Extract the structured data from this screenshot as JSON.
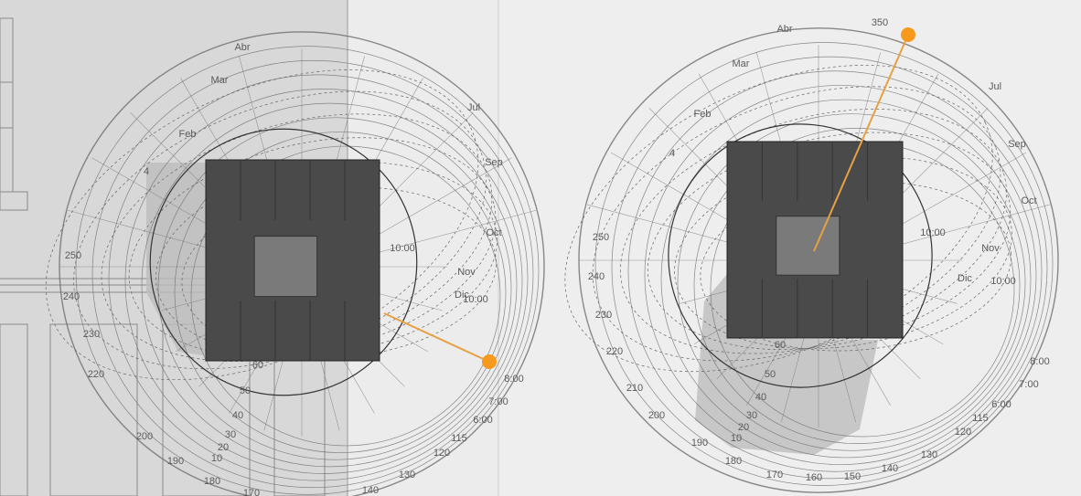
{
  "panels": [
    {
      "months": [
        "Abr",
        "Mar",
        "Feb",
        "Jul",
        "Sep",
        "Oct",
        "Nov",
        "Dic"
      ],
      "hours": [
        "10:00",
        "10:00",
        "8:00",
        "7:00",
        "6:00"
      ],
      "degrees": [
        "250",
        "240",
        "230",
        "220",
        "200",
        "190",
        "180",
        "170",
        "140",
        "130",
        "120",
        "115",
        "60",
        "50",
        "40",
        "30",
        "20",
        "10",
        "4"
      ]
    },
    {
      "months": [
        "Abr",
        "Mar",
        "Feb",
        "Jul",
        "Sep",
        "Oct",
        "Nov",
        "Dic"
      ],
      "hours": [
        "10:00",
        "10:00",
        "8:00",
        "7:00",
        "6:00"
      ],
      "degrees": [
        "250",
        "240",
        "230",
        "220",
        "210",
        "200",
        "190",
        "180",
        "170",
        "160",
        "150",
        "140",
        "130",
        "120",
        "115",
        "60",
        "50",
        "40",
        "30",
        "20",
        "10",
        "350",
        "4"
      ]
    }
  ]
}
